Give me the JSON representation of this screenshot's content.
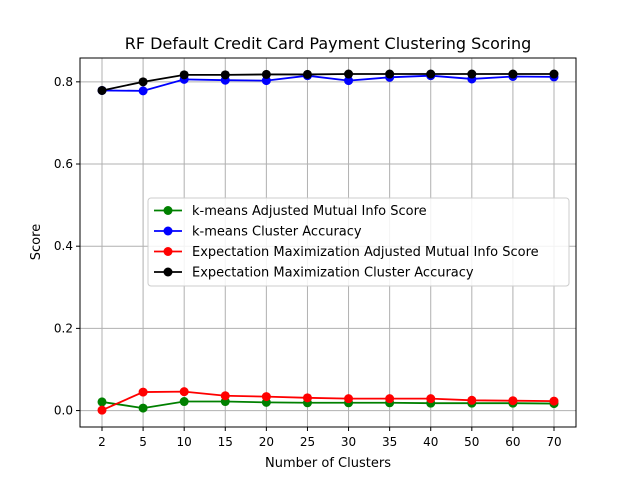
{
  "chart_data": {
    "type": "line",
    "title": "RF Default Credit Card Payment Clustering Scoring",
    "xlabel": "Number of Clusters",
    "ylabel": "Score",
    "x": [
      "2",
      "5",
      "10",
      "15",
      "20",
      "25",
      "30",
      "35",
      "40",
      "50",
      "60",
      "70"
    ],
    "y_ticks": [
      "0.0",
      "0.2",
      "0.4",
      "0.6",
      "0.8"
    ],
    "ylim": [
      -0.04,
      0.858
    ],
    "grid": true,
    "legend_position": "center-right",
    "series": [
      {
        "name": "k-means Adjusted Mutual Info Score",
        "color": "#008000",
        "values": [
          0.021,
          0.006,
          0.022,
          0.022,
          0.02,
          0.019,
          0.019,
          0.019,
          0.018,
          0.018,
          0.018,
          0.017
        ]
      },
      {
        "name": "k-means Cluster Accuracy",
        "color": "#0000ff",
        "values": [
          0.779,
          0.778,
          0.806,
          0.804,
          0.803,
          0.815,
          0.803,
          0.811,
          0.815,
          0.807,
          0.813,
          0.812
        ]
      },
      {
        "name": "Expectation Maximization Adjusted Mutual Info Score",
        "color": "#ff0000",
        "values": [
          0.001,
          0.045,
          0.046,
          0.036,
          0.034,
          0.031,
          0.029,
          0.029,
          0.029,
          0.025,
          0.024,
          0.023
        ]
      },
      {
        "name": "Expectation Maximization Cluster Accuracy",
        "color": "#000000",
        "values": [
          0.779,
          0.8,
          0.817,
          0.817,
          0.818,
          0.818,
          0.819,
          0.819,
          0.819,
          0.819,
          0.819,
          0.819
        ]
      }
    ]
  }
}
